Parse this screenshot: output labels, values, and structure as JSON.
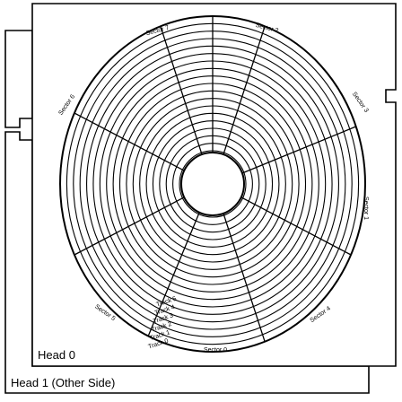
{
  "heads": {
    "front": "Head 0",
    "back": "Head 1 (Other Side)"
  },
  "disk": {
    "sectors": [
      {
        "label": "Sector 0"
      },
      {
        "label": "Sector 1"
      },
      {
        "label": "Sector 2"
      },
      {
        "label": "Sector 3"
      },
      {
        "label": "Sector 4"
      },
      {
        "label": "Sector 5"
      },
      {
        "label": "Sector 6"
      },
      {
        "label": "Sector 7"
      }
    ],
    "track_labels": [
      "Track 0",
      "Track 1",
      "Track 2",
      "Track 3",
      "Track 4",
      "Track 5"
    ],
    "track_count": 18
  },
  "colors": {
    "stroke": "#000000",
    "background": "#ffffff"
  }
}
